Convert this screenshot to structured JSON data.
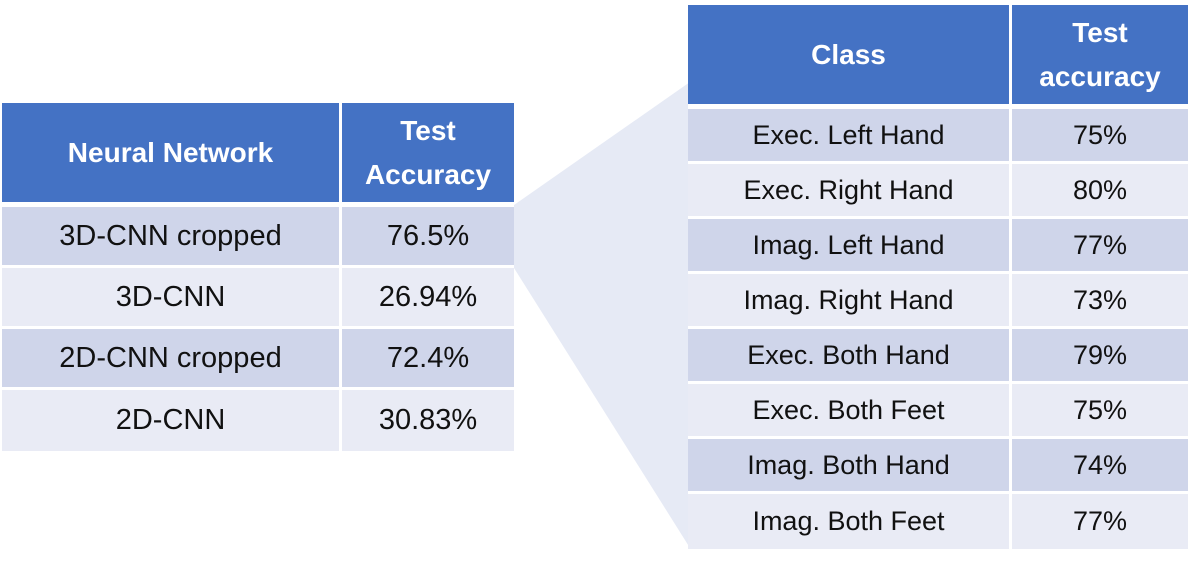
{
  "left_table": {
    "headers": [
      "Neural Network",
      "Test Accuracy"
    ],
    "rows": [
      [
        "3D-CNN cropped",
        "76.5%"
      ],
      [
        "3D-CNN",
        "26.94%"
      ],
      [
        "2D-CNN cropped",
        "72.4%"
      ],
      [
        "2D-CNN",
        "30.83%"
      ]
    ]
  },
  "right_table": {
    "headers": [
      "Class",
      "Test accuracy"
    ],
    "rows": [
      [
        "Exec. Left Hand",
        "75%"
      ],
      [
        "Exec. Right Hand",
        "80%"
      ],
      [
        "Imag. Left Hand",
        "77%"
      ],
      [
        "Imag. Right Hand",
        "73%"
      ],
      [
        "Exec. Both Hand",
        "79%"
      ],
      [
        "Exec. Both Feet",
        "75%"
      ],
      [
        "Imag. Both Hand",
        "74%"
      ],
      [
        "Imag. Both Feet",
        "77%"
      ]
    ]
  },
  "colors": {
    "header_bg": "#4472c4",
    "row_band_dark": "#cfd5ea",
    "row_band_light": "#e9ebf5",
    "connector_fill": "#e6eaf5"
  }
}
